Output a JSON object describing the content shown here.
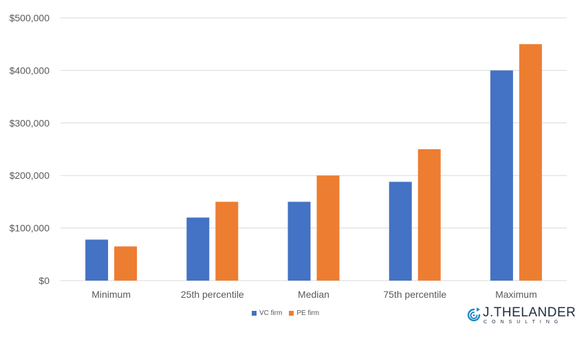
{
  "chart_data": {
    "type": "bar",
    "categories": [
      "Minimum",
      "25th percentile",
      "Median",
      "75th percentile",
      "Maximum"
    ],
    "series": [
      {
        "name": "VC firm",
        "values": [
          78000,
          120000,
          150000,
          188000,
          400000
        ]
      },
      {
        "name": "PE firm",
        "values": [
          65000,
          150000,
          200000,
          250000,
          450000
        ]
      }
    ],
    "y_ticks": [
      "$0",
      "$100,000",
      "$200,000",
      "$300,000",
      "$400,000",
      "$500,000"
    ],
    "ylim": [
      0,
      500000
    ],
    "grid": true,
    "legend_position": "bottom-center"
  },
  "colors": {
    "vc": "#4472C4",
    "pe": "#ED7D31",
    "grid": "#D9D9D9",
    "logo_blue": "#1e88c8"
  },
  "logo": {
    "name": "J.THELANDER",
    "sub": "CONSULTING",
    "icon": "spiral-arrow-icon"
  }
}
